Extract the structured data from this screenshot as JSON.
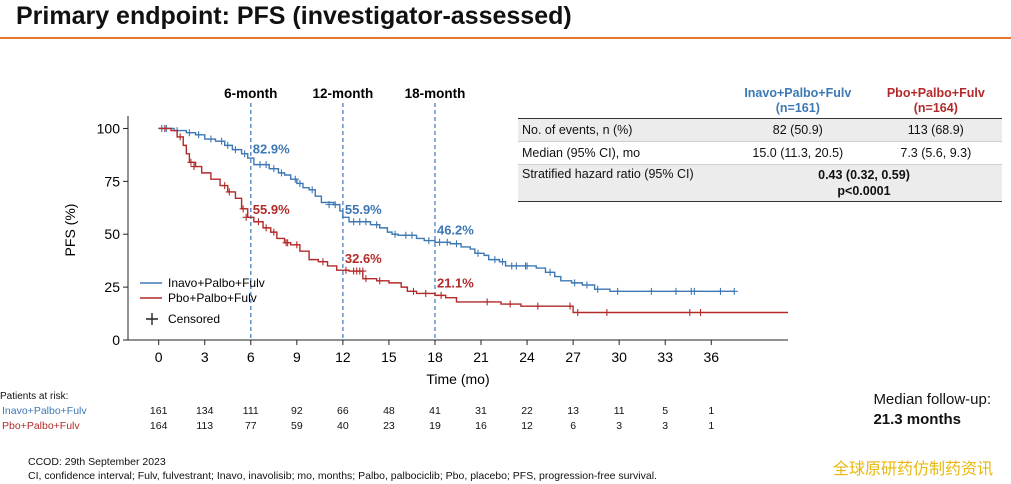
{
  "title": "Primary endpoint: PFS (investigator-assessed)",
  "colors": {
    "inavo": "#3d78b4",
    "pbo": "#b22a2a",
    "accent": "#e8762d",
    "watermark": "#e8b80c"
  },
  "chart_data": {
    "type": "line",
    "step": true,
    "xlabel": "Time (mo)",
    "ylabel": "PFS (%)",
    "xlim": [
      -2,
      41
    ],
    "ylim": [
      0,
      104
    ],
    "x_ticks": [
      "0",
      "3",
      "6",
      "9",
      "12",
      "15",
      "18",
      "21",
      "24",
      "27",
      "30",
      "33",
      "36"
    ],
    "y_ticks": [
      "0",
      "25",
      "50",
      "75",
      "100"
    ],
    "legend": {
      "placement": "lower-left",
      "censored_label": "Censored"
    },
    "milestones": [
      {
        "x": 6,
        "label": "6-month",
        "inavo": "82.9%",
        "pbo": "55.9%"
      },
      {
        "x": 12,
        "label": "12-month",
        "inavo": "55.9%",
        "pbo": "32.6%"
      },
      {
        "x": 18,
        "label": "18-month",
        "inavo": "46.2%",
        "pbo": "21.1%"
      }
    ],
    "series": [
      {
        "name": "Inavo+Palbo+Fulv",
        "points": [
          [
            0,
            100
          ],
          [
            1.0,
            99
          ],
          [
            1.8,
            98
          ],
          [
            2.4,
            97
          ],
          [
            3.0,
            95
          ],
          [
            3.7,
            94
          ],
          [
            4.3,
            92
          ],
          [
            4.8,
            90
          ],
          [
            5.4,
            88
          ],
          [
            5.8,
            86
          ],
          [
            6.2,
            82.9
          ],
          [
            7.2,
            81
          ],
          [
            7.8,
            79
          ],
          [
            8.2,
            78
          ],
          [
            8.6,
            76
          ],
          [
            9.0,
            74
          ],
          [
            9.4,
            72
          ],
          [
            9.8,
            71
          ],
          [
            10.2,
            68
          ],
          [
            10.6,
            65
          ],
          [
            11.4,
            64
          ],
          [
            11.8,
            61
          ],
          [
            12.0,
            58
          ],
          [
            12.4,
            55.9
          ],
          [
            13.8,
            54.5
          ],
          [
            14.4,
            53
          ],
          [
            14.9,
            51
          ],
          [
            15.2,
            50
          ],
          [
            15.6,
            49.5
          ],
          [
            16.8,
            48
          ],
          [
            17.3,
            47
          ],
          [
            18.0,
            46.2
          ],
          [
            19.0,
            45.5
          ],
          [
            19.7,
            44
          ],
          [
            20.3,
            43
          ],
          [
            20.6,
            41
          ],
          [
            21.2,
            40
          ],
          [
            21.5,
            38
          ],
          [
            22.2,
            37
          ],
          [
            22.6,
            35
          ],
          [
            24.6,
            34
          ],
          [
            25.2,
            32
          ],
          [
            25.8,
            30
          ],
          [
            26.2,
            28
          ],
          [
            26.9,
            27
          ],
          [
            27.6,
            26
          ],
          [
            28.4,
            24
          ],
          [
            29.4,
            23
          ],
          [
            37.5,
            23
          ]
        ],
        "censored": [
          [
            0.2,
            100
          ],
          [
            0.5,
            100
          ],
          [
            1.2,
            99
          ],
          [
            2.0,
            98
          ],
          [
            2.6,
            97
          ],
          [
            3.4,
            95
          ],
          [
            4.1,
            94
          ],
          [
            4.5,
            92
          ],
          [
            5.0,
            90
          ],
          [
            5.6,
            88
          ],
          [
            6.6,
            82.9
          ],
          [
            7.0,
            82.9
          ],
          [
            7.5,
            81
          ],
          [
            8.0,
            79
          ],
          [
            8.9,
            76
          ],
          [
            9.2,
            74
          ],
          [
            10.0,
            71
          ],
          [
            11.1,
            64
          ],
          [
            11.5,
            64
          ],
          [
            12.7,
            55.9
          ],
          [
            13.1,
            55.9
          ],
          [
            13.5,
            55.9
          ],
          [
            14.2,
            54.5
          ],
          [
            15.4,
            50
          ],
          [
            16.1,
            49.5
          ],
          [
            16.5,
            49.5
          ],
          [
            17.6,
            47
          ],
          [
            18.3,
            46.2
          ],
          [
            18.8,
            46.2
          ],
          [
            19.4,
            45.5
          ],
          [
            20.8,
            41
          ],
          [
            21.9,
            38
          ],
          [
            22.4,
            37
          ],
          [
            23.0,
            35
          ],
          [
            23.3,
            35
          ],
          [
            23.9,
            35
          ],
          [
            24.0,
            35
          ],
          [
            25.5,
            32
          ],
          [
            27.1,
            27
          ],
          [
            27.9,
            26
          ],
          [
            28.6,
            24
          ],
          [
            29.9,
            23
          ],
          [
            32.1,
            23
          ],
          [
            33.7,
            23
          ],
          [
            34.7,
            23
          ],
          [
            34.9,
            23
          ],
          [
            36.6,
            23
          ],
          [
            37.5,
            23
          ]
        ]
      },
      {
        "name": "Pbo+Palbo+Fulv",
        "points": [
          [
            0,
            100
          ],
          [
            0.8,
            99
          ],
          [
            1.2,
            96
          ],
          [
            1.6,
            92
          ],
          [
            1.8,
            88
          ],
          [
            2.0,
            84
          ],
          [
            2.4,
            82
          ],
          [
            2.8,
            79
          ],
          [
            3.4,
            76
          ],
          [
            4.0,
            73
          ],
          [
            4.5,
            70
          ],
          [
            5.0,
            67
          ],
          [
            5.4,
            62
          ],
          [
            5.8,
            58
          ],
          [
            6.2,
            55.9
          ],
          [
            6.8,
            53
          ],
          [
            7.3,
            51
          ],
          [
            7.7,
            48
          ],
          [
            8.2,
            46
          ],
          [
            8.6,
            45
          ],
          [
            9.2,
            42
          ],
          [
            9.8,
            38
          ],
          [
            10.4,
            37
          ],
          [
            11.0,
            35
          ],
          [
            11.6,
            33
          ],
          [
            12.4,
            32.6
          ],
          [
            13.3,
            29
          ],
          [
            14.2,
            28
          ],
          [
            15.0,
            27
          ],
          [
            15.8,
            25
          ],
          [
            16.2,
            23
          ],
          [
            16.8,
            22
          ],
          [
            18.0,
            21.1
          ],
          [
            18.7,
            20
          ],
          [
            19.4,
            18
          ],
          [
            22.3,
            17
          ],
          [
            23.6,
            16
          ],
          [
            27.0,
            13
          ],
          [
            41.0,
            13
          ]
        ],
        "censored": [
          [
            0.4,
            100
          ],
          [
            1.4,
            96
          ],
          [
            2.1,
            84
          ],
          [
            2.3,
            82
          ],
          [
            4.3,
            73
          ],
          [
            4.6,
            70
          ],
          [
            5.5,
            62
          ],
          [
            5.7,
            58
          ],
          [
            6.5,
            55.9
          ],
          [
            7.0,
            53
          ],
          [
            7.5,
            51
          ],
          [
            8.3,
            46
          ],
          [
            8.4,
            46
          ],
          [
            9.0,
            45
          ],
          [
            10.7,
            37
          ],
          [
            12.2,
            33
          ],
          [
            12.7,
            32.6
          ],
          [
            12.9,
            32.6
          ],
          [
            13.1,
            32.6
          ],
          [
            13.3,
            32.6
          ],
          [
            13.5,
            29
          ],
          [
            14.4,
            28
          ],
          [
            16.6,
            23
          ],
          [
            17.4,
            22
          ],
          [
            18.4,
            21.1
          ],
          [
            21.4,
            18
          ],
          [
            22.9,
            17
          ],
          [
            24.7,
            16
          ],
          [
            26.8,
            16
          ],
          [
            27.3,
            13
          ],
          [
            29.2,
            13
          ],
          [
            34.6,
            13
          ],
          [
            35.3,
            13
          ]
        ]
      }
    ]
  },
  "stats_table": {
    "header": {
      "inavo": "Inavo+Palbo+Fulv",
      "inavo_n": "(n=161)",
      "pbo": "Pbo+Palbo+Fulv",
      "pbo_n": "(n=164)"
    },
    "rows": [
      {
        "label": "No. of events, n (%)",
        "inavo": "82 (50.9)",
        "pbo": "113 (68.9)"
      },
      {
        "label": "Median (95% CI), mo",
        "inavo": "15.0 (11.3, 20.5)",
        "pbo": "7.3 (5.6, 9.3)"
      }
    ],
    "hr": {
      "label": "Stratified hazard ratio (95% CI)",
      "value": "0.43 (0.32, 0.59)",
      "p": "p<0.0001"
    }
  },
  "risk_table": {
    "title": "Patients at risk:",
    "times": [
      0,
      3,
      6,
      9,
      12,
      15,
      18,
      21,
      24,
      27,
      30,
      33,
      36
    ],
    "inavo": {
      "label": "Inavo+Palbo+Fulv",
      "values": [
        "161",
        "134",
        "111",
        "92",
        "66",
        "48",
        "41",
        "31",
        "22",
        "13",
        "11",
        "5",
        "1"
      ]
    },
    "pbo": {
      "label": "Pbo+Palbo+Fulv",
      "values": [
        "164",
        "113",
        "77",
        "59",
        "40",
        "23",
        "19",
        "16",
        "12",
        "6",
        "3",
        "3",
        "1"
      ]
    }
  },
  "followup": {
    "label": "Median follow-up:",
    "value": "21.3 months"
  },
  "footnotes": {
    "ccod": "CCOD: 29th September 2023",
    "abbrev": "CI, confidence interval; Fulv, fulvestrant; Inavo, inavolisib; mo, months; Palbo, palbociclib; Pbo, placebo; PFS, progression-free survival."
  },
  "watermark": "全球原研药仿制药资讯"
}
